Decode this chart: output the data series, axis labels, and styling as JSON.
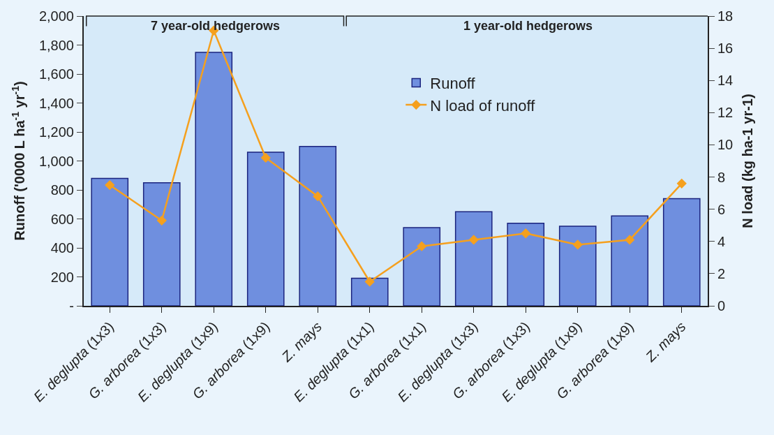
{
  "chart_data": {
    "type": "bar",
    "categories": [
      "E. deglupta (1x3)",
      "G. arborea (1x3)",
      "E. deglupta (1x9)",
      "G. arborea (1x9)",
      "Z. mays",
      "E. deglupta (1x1)",
      "G. arborea (1x1)",
      "E. deglupta (1x3)",
      "G. arborea (1x3)",
      "E. deglupta (1x9)",
      "G. arborea (1x9)",
      "Z. mays"
    ],
    "series": [
      {
        "name": "Runoff",
        "color": "#6f8fdf",
        "values": [
          880,
          850,
          1750,
          1060,
          1100,
          190,
          540,
          650,
          570,
          550,
          620,
          740
        ]
      },
      {
        "name": "N load of runoff",
        "type": "line",
        "axis": "y2",
        "color": "#f5a01e",
        "marker": "diamond",
        "values": [
          7.5,
          5.3,
          17.1,
          9.2,
          6.8,
          1.5,
          3.7,
          4.1,
          4.5,
          3.8,
          4.1,
          7.6
        ]
      }
    ],
    "ylabel": "Runoff ('0000 L ha$^{-1}$ yr$^{-1}$)",
    "y2label": "N load (kg ha-1 yr-1)",
    "ylim": [
      0,
      2000
    ],
    "yticks": [
      {
        "value": 0,
        "label": "-"
      },
      {
        "value": 200,
        "label": "200"
      },
      {
        "value": 400,
        "label": "400"
      },
      {
        "value": 600,
        "label": "600"
      },
      {
        "value": 800,
        "label": "800"
      },
      {
        "value": 1000,
        "label": "1,000"
      },
      {
        "value": 1200,
        "label": "1,200"
      },
      {
        "value": 1400,
        "label": "1,400"
      },
      {
        "value": 1600,
        "label": "1,600"
      },
      {
        "value": 1800,
        "label": "1,800"
      },
      {
        "value": 2000,
        "label": "2,000"
      }
    ],
    "y2lim": [
      0,
      18
    ],
    "y2ticks": [
      0,
      2,
      4,
      6,
      8,
      10,
      12,
      14,
      16,
      18
    ],
    "annotations": [
      "7 year-old hedgerows",
      "1 year-old hedgerows"
    ],
    "legend": "top",
    "grid": false
  }
}
